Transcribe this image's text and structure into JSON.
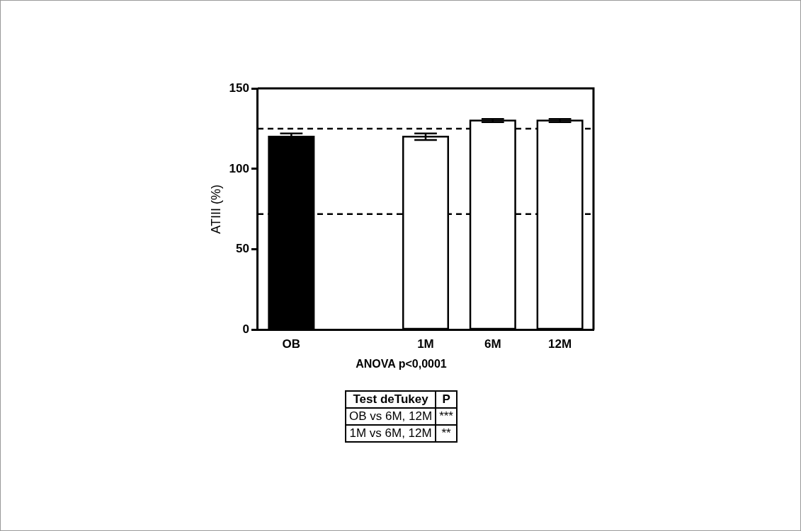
{
  "chart_data": {
    "type": "bar",
    "categories": [
      "OB",
      null,
      "1M",
      "6M",
      "12M"
    ],
    "values": [
      120,
      0,
      120,
      130,
      130
    ],
    "errors": [
      2,
      null,
      2,
      1,
      1
    ],
    "colors": [
      "#000000",
      "#000000",
      "#ffffff",
      "#ffffff",
      "#ffffff"
    ],
    "ylabel": "ATIII (%)",
    "ylim": [
      0,
      150
    ],
    "yticks": [
      0,
      50,
      100,
      150
    ],
    "ref_lines": [
      {
        "axis": "y",
        "value": 125,
        "color": "#000000",
        "line_style": "dashed"
      },
      {
        "axis": "y",
        "value": 72,
        "color": "#000000",
        "line_style": "dashed"
      }
    ],
    "annotations": [
      "ANOVA p<0,0001",
      "Test deTukey",
      "P",
      "OB vs 6M, 12M",
      "***",
      "1M vs 6M, 12M",
      "**"
    ]
  }
}
